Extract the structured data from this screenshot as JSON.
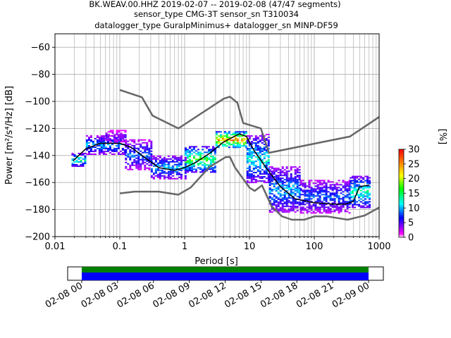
{
  "chart_data": {
    "type": "heatmap",
    "title_lines": [
      "BK.WEAV.00.HHZ   2019-02-07 -- 2019-02-08  (47/47 segments)",
      "sensor_type CMG-3T sensor_sn T310034",
      "datalogger_type GuralpMinimus+ datalogger_sn MINP-DF59"
    ],
    "xlabel": "Period [s]",
    "ylabel": "Power [m²/s⁴/Hz] [dB]",
    "xscale": "log",
    "xlim": [
      0.01,
      1000
    ],
    "ylim": [
      -200,
      -50
    ],
    "x_ticks": [
      {
        "value": 0.01,
        "label": "0.01"
      },
      {
        "value": 0.1,
        "label": "0.1"
      },
      {
        "value": 1,
        "label": "1"
      },
      {
        "value": 10,
        "label": "10"
      },
      {
        "value": 100,
        "label": "100"
      },
      {
        "value": 1000,
        "label": "1000"
      }
    ],
    "y_ticks": [
      {
        "value": -60,
        "label": "−60"
      },
      {
        "value": -80,
        "label": "−80"
      },
      {
        "value": -100,
        "label": "−100"
      },
      {
        "value": -120,
        "label": "−120"
      },
      {
        "value": -140,
        "label": "−140"
      },
      {
        "value": -160,
        "label": "−160"
      },
      {
        "value": -180,
        "label": "−180"
      },
      {
        "value": -200,
        "label": "−200"
      }
    ],
    "grid": true,
    "colorbar": {
      "label": "[%]",
      "range": [
        0,
        30
      ],
      "ticks": [
        {
          "value": 0,
          "label": "0"
        },
        {
          "value": 5,
          "label": "5"
        },
        {
          "value": 10,
          "label": "10"
        },
        {
          "value": 15,
          "label": "15"
        },
        {
          "value": 20,
          "label": "20"
        },
        {
          "value": 25,
          "label": "25"
        },
        {
          "value": 30,
          "label": "30"
        }
      ],
      "colormap": [
        "#ffffff",
        "#ff00ff",
        "#0000ff",
        "#00ffff",
        "#00ff00",
        "#ffff00",
        "#ff8000",
        "#ff0000"
      ]
    },
    "noise_model_high": {
      "color": "#666666",
      "points": [
        [
          0.1,
          -91.5
        ],
        [
          0.22,
          -97
        ],
        [
          0.32,
          -110.5
        ],
        [
          0.8,
          -120
        ],
        [
          4,
          -98
        ],
        [
          5,
          -96.5
        ],
        [
          6.5,
          -101
        ],
        [
          8,
          -116
        ],
        [
          15,
          -120
        ],
        [
          20,
          -138
        ],
        [
          354,
          -126
        ],
        [
          1000,
          -111.5
        ]
      ]
    },
    "noise_model_low": {
      "color": "#666666",
      "points": [
        [
          0.1,
          -168
        ],
        [
          0.17,
          -166.7
        ],
        [
          0.4,
          -166.7
        ],
        [
          0.8,
          -169
        ],
        [
          1.24,
          -163.7
        ],
        [
          2.4,
          -148.6
        ],
        [
          4.3,
          -141.2
        ],
        [
          5,
          -141.1
        ],
        [
          6,
          -149
        ],
        [
          10,
          -163.8
        ],
        [
          12,
          -166.2
        ],
        [
          15.6,
          -162.1
        ],
        [
          21.9,
          -177.5
        ],
        [
          31.6,
          -185
        ],
        [
          45,
          -187.5
        ],
        [
          70,
          -187.5
        ],
        [
          101,
          -185
        ],
        [
          154,
          -185
        ],
        [
          328,
          -187.5
        ],
        [
          600,
          -184.4
        ],
        [
          1000,
          -178.5
        ]
      ]
    },
    "mean_curve": {
      "color": "#000000",
      "points": [
        [
          0.019,
          -144
        ],
        [
          0.03,
          -135
        ],
        [
          0.05,
          -131
        ],
        [
          0.1,
          -131
        ],
        [
          0.15,
          -134
        ],
        [
          0.25,
          -142
        ],
        [
          0.4,
          -149
        ],
        [
          0.7,
          -151
        ],
        [
          1,
          -149
        ],
        [
          1.5,
          -145
        ],
        [
          2.5,
          -138
        ],
        [
          4,
          -130
        ],
        [
          7,
          -124
        ],
        [
          9,
          -126
        ],
        [
          12,
          -137
        ],
        [
          20,
          -152
        ],
        [
          30,
          -163
        ],
        [
          50,
          -172
        ],
        [
          100,
          -175
        ],
        [
          200,
          -176
        ],
        [
          300,
          -176
        ],
        [
          400,
          -174
        ],
        [
          500,
          -163
        ],
        [
          700,
          -162
        ]
      ]
    },
    "pdf_bands": [
      {
        "period_range": [
          0.018,
          0.03
        ],
        "power_range": [
          -148,
          -138
        ],
        "percent": 8
      },
      {
        "period_range": [
          0.03,
          0.12
        ],
        "power_range": [
          -139,
          -125
        ],
        "percent": 6
      },
      {
        "period_range": [
          0.06,
          0.12
        ],
        "power_range": [
          -130,
          -121
        ],
        "percent": 3
      },
      {
        "period_range": [
          0.12,
          0.3
        ],
        "power_range": [
          -150,
          -128
        ],
        "percent": 5
      },
      {
        "period_range": [
          0.3,
          1.0
        ],
        "power_range": [
          -157,
          -140
        ],
        "percent": 6
      },
      {
        "period_range": [
          1.0,
          3.0
        ],
        "power_range": [
          -152,
          -133
        ],
        "percent": 10
      },
      {
        "period_range": [
          3.0,
          9.0
        ],
        "power_range": [
          -134,
          -122
        ],
        "percent": 15
      },
      {
        "period_range": [
          9.0,
          20.0
        ],
        "power_range": [
          -160,
          -124
        ],
        "percent": 7
      },
      {
        "period_range": [
          20.0,
          60.0
        ],
        "power_range": [
          -182,
          -148
        ],
        "percent": 6
      },
      {
        "period_range": [
          60.0,
          350.0
        ],
        "power_range": [
          -182,
          -158
        ],
        "percent": 5
      },
      {
        "period_range": [
          350.0,
          700.0
        ],
        "power_range": [
          -178,
          -155
        ],
        "percent": 8
      }
    ],
    "time_axis": {
      "tick_labels": [
        "02-08 00",
        "02-08 03",
        "02-08 06",
        "02-08 09",
        "02-08 12",
        "02-08 15",
        "02-08 18",
        "02-08 21",
        "02-09 00"
      ],
      "coverage_start": "02-08 00",
      "coverage_end": "02-09 00",
      "colors": {
        "data": "#0000ff",
        "gap_free": "#008000"
      }
    }
  }
}
